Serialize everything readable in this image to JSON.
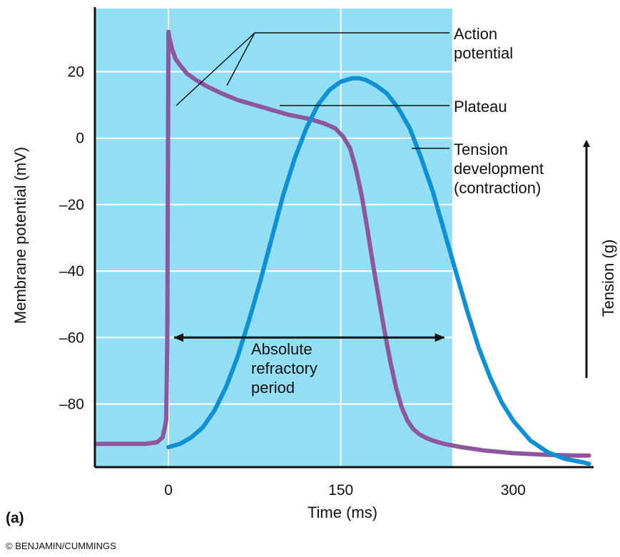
{
  "chart_data": {
    "type": "line",
    "panel_label": "(a)",
    "credit": "© BENJAMIN/CUMMINGS",
    "xlabel": "Time (ms)",
    "ylabel": "Membrane potential (mV)",
    "y2label": "Tension (g)",
    "xlim": [
      -64,
      370
    ],
    "ylim": [
      -99,
      39
    ],
    "x_ticks": [
      0,
      150,
      300
    ],
    "x_tick_labels": [
      "0",
      "150",
      "300"
    ],
    "y_ticks": [
      20,
      0,
      -20,
      -40,
      -60,
      -80
    ],
    "y_tick_labels": [
      "20",
      "0",
      "–20",
      "–40",
      "–60",
      "–80"
    ],
    "grid": true,
    "shaded_region": {
      "x": [
        0,
        247
      ],
      "color": "#92def4"
    },
    "colors": {
      "plot_bg": "#92def4",
      "grid": "#ffffff",
      "action_potential": "#8e569e",
      "tension": "#0f8fd4",
      "axes": "#111111"
    },
    "series": [
      {
        "name": "Action potential",
        "x": [
          -62,
          -20,
          -10,
          -5,
          -2,
          -1,
          0,
          1,
          3,
          6,
          10,
          16,
          24,
          34,
          46,
          60,
          75,
          90,
          105,
          120,
          135,
          145,
          152,
          158,
          163,
          168,
          173,
          178,
          183,
          188,
          193,
          198,
          203,
          208,
          213,
          218,
          223,
          230,
          240,
          255,
          275,
          300,
          330,
          355,
          366
        ],
        "values": [
          -92,
          -92,
          -91.5,
          -90,
          -85,
          -60,
          32,
          30,
          27,
          24,
          22,
          19.5,
          17.5,
          15.5,
          13.5,
          11.5,
          10,
          8.5,
          7,
          6,
          4.5,
          3,
          0.5,
          -3,
          -9,
          -17,
          -27,
          -38,
          -48,
          -58,
          -67,
          -75,
          -81,
          -85,
          -87.5,
          -89,
          -90,
          -91,
          -92,
          -93,
          -94,
          -94.8,
          -95.3,
          -95.5,
          -95.5
        ]
      },
      {
        "name": "Tension development (contraction)",
        "x": [
          0,
          10,
          20,
          30,
          40,
          50,
          60,
          70,
          80,
          90,
          100,
          110,
          120,
          130,
          140,
          150,
          160,
          166,
          172,
          180,
          190,
          200,
          210,
          220,
          230,
          240,
          250,
          260,
          270,
          280,
          290,
          300,
          315,
          330,
          345,
          360,
          366
        ],
        "values": [
          -93,
          -92,
          -90,
          -87,
          -82,
          -75,
          -66,
          -55,
          -43,
          -30,
          -17,
          -6,
          3,
          10,
          14.5,
          17,
          18,
          18,
          17.5,
          16,
          13.5,
          9,
          3,
          -6,
          -16,
          -28,
          -40,
          -52,
          -63,
          -72,
          -79.5,
          -85,
          -91,
          -94.5,
          -96.5,
          -97.5,
          -98
        ]
      }
    ],
    "annotations": {
      "action_potential": "Action\npotential",
      "plateau": "Plateau",
      "tension_development": "Tension\ndevelopment\n(contraction)",
      "absolute_refractory_period": "Absolute\nrefractory\nperiod"
    },
    "refractory_period_x": [
      5,
      240
    ]
  }
}
